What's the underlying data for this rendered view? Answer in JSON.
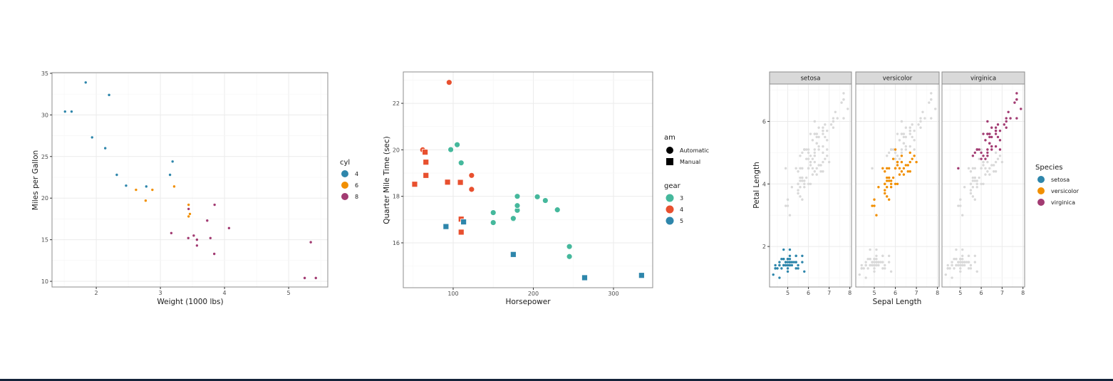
{
  "chart_data": [
    {
      "type": "scatter",
      "xlabel": "Weight (1000 lbs)",
      "ylabel": "Miles per Gallon",
      "xlim": [
        1.31,
        5.61
      ],
      "ylim": [
        9.32,
        35.08
      ],
      "xticks": [
        2,
        3,
        4,
        5
      ],
      "yticks": [
        10,
        15,
        20,
        25,
        30,
        35
      ],
      "grid": true,
      "legend": {
        "title": "cyl",
        "placement": "right",
        "entries": [
          "4",
          "6",
          "8"
        ]
      },
      "colors": {
        "4": "#2e86ab",
        "6": "#f18f01",
        "8": "#a23b72"
      },
      "points": [
        {
          "x": 2.62,
          "y": 21.0,
          "cyl": "6"
        },
        {
          "x": 2.875,
          "y": 21.0,
          "cyl": "6"
        },
        {
          "x": 2.32,
          "y": 22.8,
          "cyl": "4"
        },
        {
          "x": 3.215,
          "y": 21.4,
          "cyl": "6"
        },
        {
          "x": 3.44,
          "y": 18.7,
          "cyl": "8"
        },
        {
          "x": 3.46,
          "y": 18.1,
          "cyl": "6"
        },
        {
          "x": 3.57,
          "y": 14.3,
          "cyl": "8"
        },
        {
          "x": 3.19,
          "y": 24.4,
          "cyl": "4"
        },
        {
          "x": 3.15,
          "y": 22.8,
          "cyl": "4"
        },
        {
          "x": 3.44,
          "y": 19.2,
          "cyl": "6"
        },
        {
          "x": 3.44,
          "y": 17.8,
          "cyl": "6"
        },
        {
          "x": 4.07,
          "y": 16.4,
          "cyl": "8"
        },
        {
          "x": 3.73,
          "y": 17.3,
          "cyl": "8"
        },
        {
          "x": 3.78,
          "y": 15.2,
          "cyl": "8"
        },
        {
          "x": 5.25,
          "y": 10.4,
          "cyl": "8"
        },
        {
          "x": 5.424,
          "y": 10.4,
          "cyl": "8"
        },
        {
          "x": 5.345,
          "y": 14.7,
          "cyl": "8"
        },
        {
          "x": 2.2,
          "y": 32.4,
          "cyl": "4"
        },
        {
          "x": 1.615,
          "y": 30.4,
          "cyl": "4"
        },
        {
          "x": 1.835,
          "y": 33.9,
          "cyl": "4"
        },
        {
          "x": 2.465,
          "y": 21.5,
          "cyl": "4"
        },
        {
          "x": 3.52,
          "y": 15.5,
          "cyl": "8"
        },
        {
          "x": 3.435,
          "y": 15.2,
          "cyl": "8"
        },
        {
          "x": 3.84,
          "y": 13.3,
          "cyl": "8"
        },
        {
          "x": 3.845,
          "y": 19.2,
          "cyl": "8"
        },
        {
          "x": 1.935,
          "y": 27.3,
          "cyl": "4"
        },
        {
          "x": 2.14,
          "y": 26.0,
          "cyl": "4"
        },
        {
          "x": 1.513,
          "y": 30.4,
          "cyl": "4"
        },
        {
          "x": 3.17,
          "y": 15.8,
          "cyl": "8"
        },
        {
          "x": 2.77,
          "y": 19.7,
          "cyl": "6"
        },
        {
          "x": 3.57,
          "y": 15.0,
          "cyl": "8"
        },
        {
          "x": 2.78,
          "y": 21.4,
          "cyl": "4"
        }
      ]
    },
    {
      "type": "scatter",
      "xlabel": "Horsepower",
      "ylabel": "Quarter Mile Time (sec)",
      "xlim": [
        37.8,
        348.9
      ],
      "ylim": [
        14.07,
        23.35
      ],
      "xticks": [
        100,
        200,
        300
      ],
      "yticks": [
        16,
        18,
        20,
        22
      ],
      "grid": true,
      "legend": [
        {
          "title": "am",
          "placement": "right",
          "entries": [
            "Automatic",
            "Manual"
          ],
          "shapes": {
            "Automatic": "circle",
            "Manual": "square"
          }
        },
        {
          "title": "gear",
          "placement": "right",
          "entries": [
            "3",
            "4",
            "5"
          ]
        }
      ],
      "colors": {
        "3": "#45b89c",
        "4": "#e8502f",
        "5": "#2e86ab"
      },
      "points": [
        {
          "x": 110,
          "y": 16.46,
          "gear": "4",
          "am": "Manual"
        },
        {
          "x": 110,
          "y": 17.02,
          "gear": "4",
          "am": "Manual"
        },
        {
          "x": 93,
          "y": 18.61,
          "gear": "4",
          "am": "Manual"
        },
        {
          "x": 110,
          "y": 19.44,
          "gear": "3",
          "am": "Automatic"
        },
        {
          "x": 175,
          "y": 17.02,
          "gear": "3",
          "am": "Automatic"
        },
        {
          "x": 105,
          "y": 20.22,
          "gear": "3",
          "am": "Automatic"
        },
        {
          "x": 245,
          "y": 15.84,
          "gear": "3",
          "am": "Automatic"
        },
        {
          "x": 62,
          "y": 20.0,
          "gear": "4",
          "am": "Automatic"
        },
        {
          "x": 95,
          "y": 22.9,
          "gear": "4",
          "am": "Automatic"
        },
        {
          "x": 123,
          "y": 18.3,
          "gear": "4",
          "am": "Automatic"
        },
        {
          "x": 123,
          "y": 18.9,
          "gear": "4",
          "am": "Automatic"
        },
        {
          "x": 180,
          "y": 17.4,
          "gear": "3",
          "am": "Automatic"
        },
        {
          "x": 180,
          "y": 17.6,
          "gear": "3",
          "am": "Automatic"
        },
        {
          "x": 180,
          "y": 18.0,
          "gear": "3",
          "am": "Automatic"
        },
        {
          "x": 205,
          "y": 17.98,
          "gear": "3",
          "am": "Automatic"
        },
        {
          "x": 215,
          "y": 17.82,
          "gear": "3",
          "am": "Automatic"
        },
        {
          "x": 230,
          "y": 17.42,
          "gear": "3",
          "am": "Automatic"
        },
        {
          "x": 66,
          "y": 19.47,
          "gear": "4",
          "am": "Manual"
        },
        {
          "x": 52,
          "y": 18.52,
          "gear": "4",
          "am": "Manual"
        },
        {
          "x": 65,
          "y": 19.9,
          "gear": "4",
          "am": "Manual"
        },
        {
          "x": 97,
          "y": 20.01,
          "gear": "3",
          "am": "Automatic"
        },
        {
          "x": 150,
          "y": 16.87,
          "gear": "3",
          "am": "Automatic"
        },
        {
          "x": 150,
          "y": 17.3,
          "gear": "3",
          "am": "Automatic"
        },
        {
          "x": 245,
          "y": 15.41,
          "gear": "3",
          "am": "Automatic"
        },
        {
          "x": 175,
          "y": 17.05,
          "gear": "3",
          "am": "Automatic"
        },
        {
          "x": 66,
          "y": 18.9,
          "gear": "4",
          "am": "Manual"
        },
        {
          "x": 91,
          "y": 16.7,
          "gear": "5",
          "am": "Manual"
        },
        {
          "x": 113,
          "y": 16.9,
          "gear": "5",
          "am": "Manual"
        },
        {
          "x": 264,
          "y": 14.5,
          "gear": "5",
          "am": "Manual"
        },
        {
          "x": 175,
          "y": 15.5,
          "gear": "5",
          "am": "Manual"
        },
        {
          "x": 335,
          "y": 14.6,
          "gear": "5",
          "am": "Manual"
        },
        {
          "x": 109,
          "y": 18.6,
          "gear": "4",
          "am": "Manual"
        }
      ]
    },
    {
      "type": "scatter",
      "xlabel": "Sepal Length",
      "ylabel": "Petal Length",
      "xlim": [
        4.12,
        8.08
      ],
      "ylim": [
        0.705,
        7.195
      ],
      "xticks": [
        5,
        6,
        7,
        8
      ],
      "yticks": [
        2,
        4,
        6
      ],
      "grid": true,
      "facets": [
        "setosa",
        "versicolor",
        "virginica"
      ],
      "background_points_color": "#d9d9d9",
      "legend": {
        "title": "Species",
        "placement": "right",
        "entries": [
          "setosa",
          "versicolor",
          "virginica"
        ]
      },
      "colors": {
        "setosa": "#2e86ab",
        "versicolor": "#f18f01",
        "virginica": "#a23b72"
      },
      "series": [
        {
          "name": "setosa",
          "points": [
            [
              5.1,
              1.4
            ],
            [
              4.9,
              1.4
            ],
            [
              4.7,
              1.3
            ],
            [
              4.6,
              1.5
            ],
            [
              5.0,
              1.4
            ],
            [
              5.4,
              1.7
            ],
            [
              4.6,
              1.4
            ],
            [
              5.0,
              1.5
            ],
            [
              4.4,
              1.4
            ],
            [
              4.9,
              1.5
            ],
            [
              5.4,
              1.5
            ],
            [
              4.8,
              1.6
            ],
            [
              4.8,
              1.4
            ],
            [
              4.3,
              1.1
            ],
            [
              5.8,
              1.2
            ],
            [
              5.7,
              1.5
            ],
            [
              5.4,
              1.3
            ],
            [
              5.1,
              1.4
            ],
            [
              5.7,
              1.7
            ],
            [
              5.1,
              1.5
            ],
            [
              5.4,
              1.7
            ],
            [
              5.1,
              1.5
            ],
            [
              4.6,
              1.0
            ],
            [
              5.1,
              1.7
            ],
            [
              4.8,
              1.9
            ],
            [
              5.0,
              1.6
            ],
            [
              5.0,
              1.6
            ],
            [
              5.2,
              1.5
            ],
            [
              5.2,
              1.4
            ],
            [
              4.7,
              1.6
            ],
            [
              4.8,
              1.6
            ],
            [
              5.4,
              1.5
            ],
            [
              5.2,
              1.5
            ],
            [
              5.5,
              1.4
            ],
            [
              4.9,
              1.5
            ],
            [
              5.0,
              1.2
            ],
            [
              5.5,
              1.3
            ],
            [
              4.9,
              1.4
            ],
            [
              4.4,
              1.3
            ],
            [
              5.1,
              1.5
            ],
            [
              5.0,
              1.3
            ],
            [
              4.5,
              1.3
            ],
            [
              4.4,
              1.3
            ],
            [
              5.0,
              1.6
            ],
            [
              5.1,
              1.9
            ],
            [
              4.8,
              1.4
            ],
            [
              5.1,
              1.6
            ],
            [
              4.6,
              1.4
            ],
            [
              5.3,
              1.5
            ],
            [
              5.0,
              1.4
            ]
          ]
        },
        {
          "name": "versicolor",
          "points": [
            [
              7.0,
              4.7
            ],
            [
              6.4,
              4.5
            ],
            [
              6.9,
              4.9
            ],
            [
              5.5,
              4.0
            ],
            [
              6.5,
              4.6
            ],
            [
              5.7,
              4.5
            ],
            [
              6.3,
              4.7
            ],
            [
              4.9,
              3.3
            ],
            [
              6.6,
              4.6
            ],
            [
              5.2,
              3.9
            ],
            [
              5.0,
              3.5
            ],
            [
              5.9,
              4.2
            ],
            [
              6.0,
              4.0
            ],
            [
              6.1,
              4.7
            ],
            [
              5.6,
              3.6
            ],
            [
              6.7,
              4.4
            ],
            [
              5.6,
              4.5
            ],
            [
              5.8,
              4.1
            ],
            [
              6.2,
              4.5
            ],
            [
              5.6,
              3.9
            ],
            [
              5.9,
              4.8
            ],
            [
              6.1,
              4.0
            ],
            [
              6.3,
              4.9
            ],
            [
              6.1,
              4.7
            ],
            [
              6.4,
              4.3
            ],
            [
              6.6,
              4.4
            ],
            [
              6.8,
              4.8
            ],
            [
              6.7,
              5.0
            ],
            [
              6.0,
              4.5
            ],
            [
              5.7,
              3.5
            ],
            [
              5.5,
              3.8
            ],
            [
              5.5,
              3.7
            ],
            [
              5.8,
              3.9
            ],
            [
              6.0,
              5.1
            ],
            [
              5.4,
              4.5
            ],
            [
              6.0,
              4.5
            ],
            [
              6.7,
              4.7
            ],
            [
              6.3,
              4.4
            ],
            [
              5.6,
              4.1
            ],
            [
              5.5,
              4.0
            ],
            [
              5.5,
              4.4
            ],
            [
              6.1,
              4.6
            ],
            [
              5.8,
              4.0
            ],
            [
              5.0,
              3.3
            ],
            [
              5.6,
              4.2
            ],
            [
              5.7,
              4.2
            ],
            [
              5.7,
              4.2
            ],
            [
              6.2,
              4.3
            ],
            [
              5.1,
              3.0
            ],
            [
              5.7,
              4.1
            ]
          ]
        },
        {
          "name": "virginica",
          "points": [
            [
              6.3,
              6.0
            ],
            [
              5.8,
              5.1
            ],
            [
              7.1,
              5.9
            ],
            [
              6.3,
              5.6
            ],
            [
              6.5,
              5.8
            ],
            [
              7.6,
              6.6
            ],
            [
              4.9,
              4.5
            ],
            [
              7.3,
              6.3
            ],
            [
              6.7,
              5.8
            ],
            [
              7.2,
              6.1
            ],
            [
              6.5,
              5.1
            ],
            [
              6.4,
              5.3
            ],
            [
              6.8,
              5.5
            ],
            [
              5.7,
              5.0
            ],
            [
              5.8,
              5.1
            ],
            [
              6.4,
              5.3
            ],
            [
              6.5,
              5.5
            ],
            [
              7.7,
              6.7
            ],
            [
              7.7,
              6.9
            ],
            [
              6.0,
              5.0
            ],
            [
              6.9,
              5.7
            ],
            [
              5.6,
              4.9
            ],
            [
              7.7,
              6.7
            ],
            [
              6.3,
              4.9
            ],
            [
              6.7,
              5.7
            ],
            [
              7.2,
              6.0
            ],
            [
              6.2,
              4.8
            ],
            [
              6.1,
              4.9
            ],
            [
              6.4,
              5.6
            ],
            [
              7.2,
              5.8
            ],
            [
              7.4,
              6.1
            ],
            [
              7.9,
              6.4
            ],
            [
              6.4,
              5.6
            ],
            [
              6.3,
              5.1
            ],
            [
              6.1,
              5.6
            ],
            [
              7.7,
              6.1
            ],
            [
              6.3,
              5.6
            ],
            [
              6.4,
              5.5
            ],
            [
              6.0,
              4.8
            ],
            [
              6.9,
              5.4
            ],
            [
              6.7,
              5.6
            ],
            [
              6.9,
              5.1
            ],
            [
              5.8,
              5.1
            ],
            [
              6.8,
              5.9
            ],
            [
              6.7,
              5.7
            ],
            [
              6.7,
              5.2
            ],
            [
              6.3,
              5.0
            ],
            [
              6.5,
              5.2
            ],
            [
              6.2,
              5.4
            ],
            [
              5.9,
              5.1
            ]
          ]
        }
      ]
    }
  ]
}
